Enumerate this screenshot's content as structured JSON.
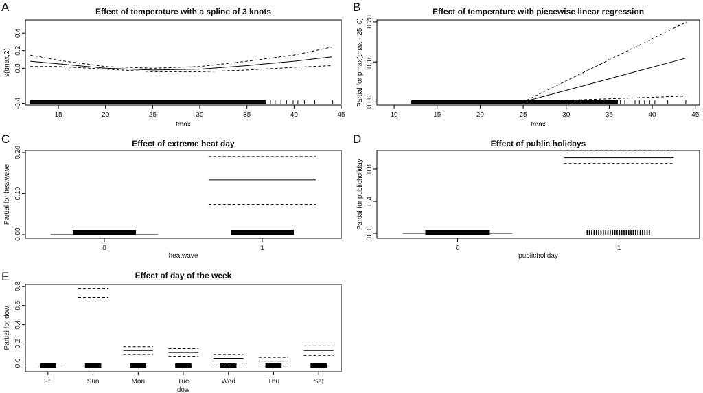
{
  "chart_data": [
    {
      "panel": "A",
      "type": "line",
      "title": "Effect of temperature with a spline of 3 knots",
      "xlabel": "tmax",
      "ylabel": "s(tmax,2)",
      "xlim": [
        11.5,
        45
      ],
      "ylim": [
        -0.42,
        0.55
      ],
      "xticks": [
        "15",
        "20",
        "25",
        "30",
        "35",
        "40",
        "45"
      ],
      "yticks": [
        "-0.4",
        "0.0",
        "0.2",
        "0.4"
      ],
      "x": [
        12,
        15,
        20,
        25,
        30,
        35,
        40,
        44
      ],
      "series": [
        {
          "style": "solid",
          "values": [
            0.08,
            0.05,
            0.0,
            -0.02,
            -0.01,
            0.03,
            0.08,
            0.13
          ]
        },
        {
          "style": "dashed",
          "values": [
            0.15,
            0.09,
            0.02,
            0.0,
            0.02,
            0.08,
            0.15,
            0.24
          ]
        },
        {
          "style": "dashed",
          "values": [
            0.02,
            0.02,
            -0.01,
            -0.04,
            -0.04,
            -0.02,
            0.01,
            0.03
          ]
        }
      ],
      "rug": "tmax 12–44"
    },
    {
      "panel": "B",
      "type": "line",
      "title": "Effect of temperature with piecewise linear regression",
      "xlabel": "tmax",
      "ylabel": "Partial for pmax(tmax - 25, 0)",
      "xlim": [
        8,
        45.5
      ],
      "ylim": [
        -0.008,
        0.205
      ],
      "xticks": [
        "10",
        "15",
        "20",
        "25",
        "30",
        "35",
        "40",
        "45"
      ],
      "yticks": [
        "0.00",
        "0.10",
        "0.20"
      ],
      "x": [
        12,
        25,
        44
      ],
      "series": [
        {
          "style": "solid",
          "values": [
            0.0,
            0.0,
            0.11
          ]
        },
        {
          "style": "dashed",
          "values": [
            0.0,
            0.0,
            0.2
          ]
        },
        {
          "style": "dashed",
          "values": [
            0.0,
            0.0,
            0.015
          ]
        }
      ],
      "rug": "tmax 12–44"
    },
    {
      "panel": "C",
      "type": "bar",
      "title": "Effect of extreme heat day",
      "xlabel": "heatwave",
      "ylabel": "Partial for heatwave",
      "categories": [
        "0",
        "1"
      ],
      "ylim": [
        -0.01,
        0.205
      ],
      "yticks": [
        "0.00",
        "0.10",
        "0.20"
      ],
      "estimate": [
        0.0,
        0.133
      ],
      "upper": [
        null,
        0.19
      ],
      "lower": [
        null,
        0.073
      ]
    },
    {
      "panel": "D",
      "type": "bar",
      "title": "Effect of public holidays",
      "xlabel": "publicholiday",
      "ylabel": "Partial for publicholiday",
      "categories": [
        "0",
        "1"
      ],
      "ylim": [
        -0.06,
        1.03
      ],
      "yticks": [
        "0.0",
        "0.4",
        "0.8"
      ],
      "estimate": [
        0.0,
        0.94
      ],
      "upper": [
        null,
        1.0
      ],
      "lower": [
        null,
        0.87
      ]
    },
    {
      "panel": "E",
      "type": "bar",
      "title": "Effect of day of the week",
      "xlabel": "dow",
      "ylabel": "Partial for dow",
      "categories": [
        "Fri",
        "Sun",
        "Mon",
        "Tue",
        "Wed",
        "Thu",
        "Sat"
      ],
      "ylim": [
        -0.09,
        0.82
      ],
      "yticks": [
        "0.0",
        "0.2",
        "0.4",
        "0.6",
        "0.8"
      ],
      "estimate": [
        0.0,
        0.73,
        0.13,
        0.11,
        0.05,
        0.02,
        0.13
      ],
      "upper": [
        null,
        0.78,
        0.17,
        0.15,
        0.09,
        0.06,
        0.18
      ],
      "lower": [
        null,
        0.68,
        0.09,
        0.07,
        0.0,
        -0.03,
        0.08
      ]
    }
  ]
}
